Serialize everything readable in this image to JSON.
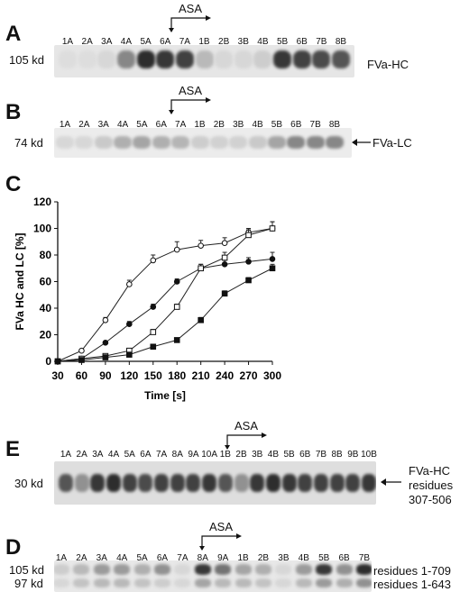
{
  "panelA": {
    "letter": "A",
    "asa": "ASA",
    "lanes": [
      "1A",
      "2A",
      "3A",
      "4A",
      "5A",
      "6A",
      "7A",
      "1B",
      "2B",
      "3B",
      "4B",
      "5B",
      "6B",
      "7B",
      "8B"
    ],
    "intensity": [
      0.02,
      0.02,
      0.05,
      0.45,
      0.9,
      0.85,
      0.8,
      0.2,
      0.05,
      0.05,
      0.1,
      0.85,
      0.8,
      0.75,
      0.7
    ],
    "mw": "105 kd",
    "label": "FVa-HC"
  },
  "panelB": {
    "letter": "B",
    "asa": "ASA",
    "lanes": [
      "1A",
      "2A",
      "3A",
      "4A",
      "5A",
      "6A",
      "7A",
      "1B",
      "2B",
      "3B",
      "4B",
      "5B",
      "6B",
      "7B",
      "8B"
    ],
    "intensity": [
      0.05,
      0.05,
      0.12,
      0.25,
      0.3,
      0.25,
      0.22,
      0.1,
      0.08,
      0.08,
      0.12,
      0.3,
      0.45,
      0.45,
      0.45
    ],
    "mw": "74 kd",
    "label": "FVa-LC"
  },
  "panelC": {
    "letter": "C"
  },
  "chart_data": {
    "type": "line",
    "xlabel": "Time [s]",
    "ylabel": "FVa HC and LC [%]",
    "xlim": [
      30,
      300
    ],
    "ylim": [
      0,
      120
    ],
    "x": [
      30,
      60,
      90,
      120,
      150,
      180,
      210,
      240,
      270,
      300
    ],
    "xticks": [
      "30",
      "60",
      "90",
      "120",
      "150",
      "180",
      "210",
      "240",
      "270",
      "300"
    ],
    "yticks": [
      "0",
      "20",
      "40",
      "60",
      "80",
      "100",
      "120"
    ],
    "series": [
      {
        "marker": "open-circle",
        "values": [
          0,
          8,
          31,
          58,
          76,
          84,
          87,
          89,
          97,
          100
        ],
        "errors": [
          0,
          1,
          2,
          3,
          4,
          6,
          4,
          4,
          3,
          5
        ]
      },
      {
        "marker": "filled-circle",
        "values": [
          0,
          2,
          14,
          28,
          41,
          60,
          70,
          73,
          75,
          77
        ],
        "errors": [
          0,
          1,
          1,
          2,
          2,
          2,
          3,
          3,
          3,
          5
        ]
      },
      {
        "marker": "open-square",
        "values": [
          0,
          2,
          4,
          8,
          22,
          41,
          70,
          78,
          95,
          100
        ],
        "errors": [
          0,
          1,
          1,
          1,
          2,
          2,
          3,
          4,
          4,
          5
        ]
      },
      {
        "marker": "filled-square",
        "values": [
          0,
          1,
          3,
          5,
          11,
          16,
          31,
          51,
          61,
          70
        ],
        "errors": [
          0,
          0,
          1,
          1,
          1,
          1,
          2,
          2,
          2,
          3
        ]
      }
    ]
  },
  "panelE": {
    "letter": "E",
    "asa": "ASA",
    "lanes": [
      "1A",
      "2A",
      "3A",
      "4A",
      "5A",
      "6A",
      "7A",
      "8A",
      "9A",
      "10A",
      "1B",
      "2B",
      "3B",
      "4B",
      "5B",
      "6B",
      "7B",
      "8B",
      "9B",
      "10B"
    ],
    "intensity": [
      0.7,
      0.4,
      0.85,
      0.9,
      0.8,
      0.75,
      0.8,
      0.8,
      0.8,
      0.85,
      0.7,
      0.4,
      0.85,
      0.9,
      0.85,
      0.8,
      0.8,
      0.8,
      0.8,
      0.85
    ],
    "mw": "30 kd",
    "label_line1": "FVa-HC",
    "label_line2": "residues",
    "label_line3": "307-506"
  },
  "panelD": {
    "letter": "D",
    "asa": "ASA",
    "lanes": [
      "1A",
      "2A",
      "3A",
      "4A",
      "5A",
      "6A",
      "7A",
      "8A",
      "9A",
      "1B",
      "2B",
      "3B",
      "4B",
      "5B",
      "6B",
      "7B"
    ],
    "upper_intensity": [
      0.1,
      0.2,
      0.35,
      0.35,
      0.25,
      0.4,
      0.05,
      0.85,
      0.55,
      0.3,
      0.25,
      0.05,
      0.35,
      0.85,
      0.4,
      0.9
    ],
    "lower_intensity": [
      0.05,
      0.15,
      0.2,
      0.2,
      0.15,
      0.1,
      0.05,
      0.3,
      0.2,
      0.2,
      0.15,
      0.05,
      0.2,
      0.35,
      0.25,
      0.4
    ],
    "mw_upper": "105 kd",
    "mw_lower": "97 kd",
    "label_upper": "residues 1-709",
    "label_lower": "residues 1-643"
  }
}
